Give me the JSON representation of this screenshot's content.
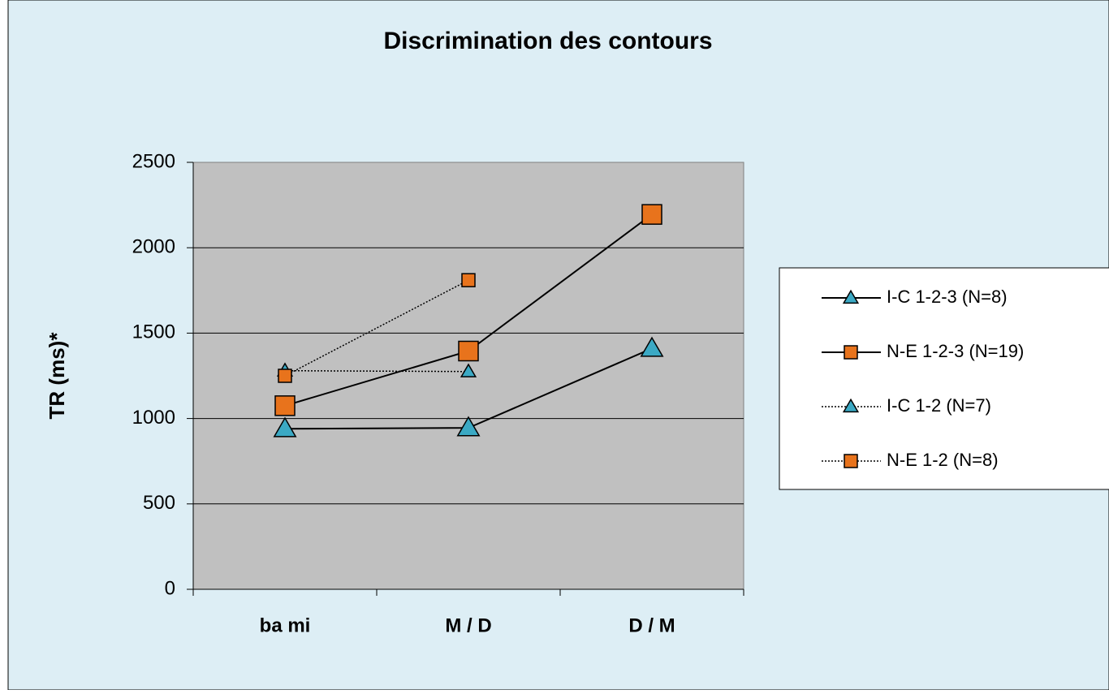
{
  "chart_data": {
    "type": "line",
    "title": "Discrimination des contours",
    "y_label": "TR (ms)*",
    "categories": [
      "ba mi",
      "M / D",
      "D / M"
    ],
    "series": [
      {
        "name": "I-C 1-2-3 (N=8)",
        "color": "#3ba9c4",
        "line_style": "solid",
        "marker": "triangle",
        "marker_size": "large",
        "values": [
          940,
          945,
          1410
        ]
      },
      {
        "name": "N-E  1-2-3 (N=19)",
        "color": "#e8731c",
        "line_style": "solid",
        "marker": "square",
        "marker_size": "large",
        "values": [
          1075,
          1395,
          2195
        ]
      },
      {
        "name": "I-C 1-2 (N=7)",
        "color": "#3ba9c4",
        "line_style": "dotted",
        "marker": "triangle",
        "marker_size": "small",
        "values": [
          1280,
          1275,
          null
        ]
      },
      {
        "name": "N-E 1-2 (N=8)",
        "color": "#e8731c",
        "line_style": "dotted",
        "marker": "square",
        "marker_size": "small",
        "values": [
          1250,
          1810,
          null
        ]
      }
    ],
    "ylim": [
      0,
      2500
    ],
    "yticks": [
      0,
      500,
      1000,
      1500,
      2000,
      2500
    ],
    "grid": true,
    "legend": "right"
  }
}
